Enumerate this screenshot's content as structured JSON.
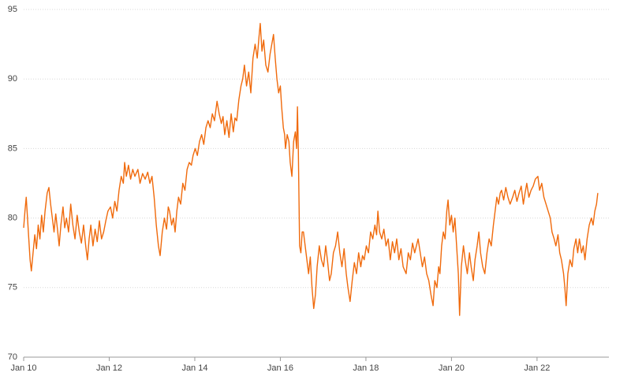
{
  "chart_data": {
    "type": "line",
    "color": "#f06a0c",
    "xlim": [
      2010,
      2023.68
    ],
    "ylim": [
      70,
      95
    ],
    "yticks": [
      70,
      75,
      80,
      85,
      90,
      95
    ],
    "grid": true,
    "xticks": [
      {
        "value": 2010,
        "label": "Jan 10"
      },
      {
        "value": 2012,
        "label": "Jan 12"
      },
      {
        "value": 2014,
        "label": "Jan 14"
      },
      {
        "value": 2016,
        "label": "Jan 16"
      },
      {
        "value": 2018,
        "label": "Jan 18"
      },
      {
        "value": 2020,
        "label": "Jan 20"
      },
      {
        "value": 2022,
        "label": "Jan 22"
      }
    ],
    "x": [
      2010.0,
      2010.03,
      2010.06,
      2010.09,
      2010.12,
      2010.15,
      2010.18,
      2010.22,
      2010.26,
      2010.3,
      2010.34,
      2010.38,
      2010.42,
      2010.46,
      2010.5,
      2010.55,
      2010.59,
      2010.63,
      2010.67,
      2010.71,
      2010.75,
      2010.79,
      2010.83,
      2010.87,
      2010.92,
      2010.96,
      2011.0,
      2011.05,
      2011.1,
      2011.15,
      2011.2,
      2011.25,
      2011.3,
      2011.35,
      2011.4,
      2011.45,
      2011.49,
      2011.53,
      2011.57,
      2011.62,
      2011.67,
      2011.72,
      2011.77,
      2011.82,
      2011.87,
      2011.92,
      2011.97,
      2012.03,
      2012.08,
      2012.13,
      2012.18,
      2012.23,
      2012.28,
      2012.33,
      2012.36,
      2012.4,
      2012.45,
      2012.5,
      2012.55,
      2012.6,
      2012.67,
      2012.72,
      2012.78,
      2012.84,
      2012.9,
      2012.95,
      2013.0,
      2013.05,
      2013.1,
      2013.15,
      2013.19,
      2013.24,
      2013.29,
      2013.34,
      2013.38,
      2013.41,
      2013.46,
      2013.5,
      2013.54,
      2013.58,
      2013.62,
      2013.67,
      2013.72,
      2013.77,
      2013.82,
      2013.87,
      2013.92,
      2013.96,
      2014.01,
      2014.06,
      2014.11,
      2014.16,
      2014.21,
      2014.26,
      2014.31,
      2014.36,
      2014.41,
      2014.46,
      2014.52,
      2014.57,
      2014.62,
      2014.66,
      2014.7,
      2014.75,
      2014.8,
      2014.85,
      2014.9,
      2014.94,
      2014.98,
      2015.03,
      2015.08,
      2015.12,
      2015.16,
      2015.21,
      2015.26,
      2015.31,
      2015.36,
      2015.41,
      2015.46,
      2015.5,
      2015.53,
      2015.57,
      2015.61,
      2015.66,
      2015.71,
      2015.76,
      2015.8,
      2015.84,
      2015.88,
      2015.92,
      2015.96,
      2016.0,
      2016.03,
      2016.07,
      2016.1,
      2016.12,
      2016.16,
      2016.2,
      2016.23,
      2016.27,
      2016.31,
      2016.35,
      2016.38,
      2016.4,
      2016.42,
      2016.45,
      2016.48,
      2016.51,
      2016.54,
      2016.58,
      2016.62,
      2016.66,
      2016.7,
      2016.74,
      2016.78,
      2016.82,
      2016.86,
      2016.91,
      2016.96,
      2017.01,
      2017.06,
      2017.1,
      2017.15,
      2017.19,
      2017.24,
      2017.29,
      2017.34,
      2017.39,
      2017.44,
      2017.49,
      2017.54,
      2017.58,
      2017.63,
      2017.68,
      2017.73,
      2017.78,
      2017.83,
      2017.88,
      2017.92,
      2017.96,
      2018.01,
      2018.06,
      2018.11,
      2018.16,
      2018.21,
      2018.25,
      2018.28,
      2018.32,
      2018.37,
      2018.42,
      2018.47,
      2018.52,
      2018.57,
      2018.62,
      2018.67,
      2018.72,
      2018.77,
      2018.82,
      2018.87,
      2018.94,
      2018.99,
      2019.04,
      2019.09,
      2019.14,
      2019.18,
      2019.22,
      2019.27,
      2019.32,
      2019.37,
      2019.42,
      2019.47,
      2019.52,
      2019.57,
      2019.61,
      2019.66,
      2019.7,
      2019.73,
      2019.77,
      2019.81,
      2019.85,
      2019.89,
      2019.92,
      2019.96,
      2020.0,
      2020.04,
      2020.08,
      2020.12,
      2020.16,
      2020.19,
      2020.23,
      2020.28,
      2020.32,
      2020.37,
      2020.42,
      2020.46,
      2020.51,
      2020.55,
      2020.6,
      2020.64,
      2020.68,
      2020.73,
      2020.78,
      2020.83,
      2020.88,
      2020.93,
      2020.98,
      2021.02,
      2021.06,
      2021.1,
      2021.14,
      2021.17,
      2021.22,
      2021.27,
      2021.32,
      2021.37,
      2021.43,
      2021.48,
      2021.53,
      2021.58,
      2021.63,
      2021.68,
      2021.72,
      2021.76,
      2021.81,
      2021.86,
      2021.91,
      2021.96,
      2022.02,
      2022.06,
      2022.11,
      2022.16,
      2022.21,
      2022.26,
      2022.31,
      2022.35,
      2022.4,
      2022.44,
      2022.49,
      2022.53,
      2022.57,
      2022.62,
      2022.65,
      2022.68,
      2022.72,
      2022.77,
      2022.82,
      2022.86,
      2022.91,
      2022.95,
      2022.99,
      2023.04,
      2023.08,
      2023.12,
      2023.17,
      2023.22,
      2023.27,
      2023.31,
      2023.35,
      2023.39,
      2023.42
    ],
    "values": [
      79.3,
      80.5,
      81.5,
      80.0,
      78.5,
      77.0,
      76.2,
      77.5,
      78.8,
      77.8,
      79.5,
      78.5,
      80.2,
      79.0,
      80.5,
      81.8,
      82.2,
      81.0,
      80.0,
      79.0,
      80.3,
      79.2,
      78.0,
      79.5,
      80.8,
      79.3,
      80.0,
      79.0,
      81.0,
      79.5,
      78.5,
      80.2,
      79.0,
      78.2,
      79.5,
      78.0,
      77.0,
      78.5,
      79.5,
      78.0,
      79.2,
      78.3,
      79.8,
      78.5,
      79.0,
      79.8,
      80.5,
      80.8,
      80.0,
      81.2,
      80.5,
      82.0,
      83.0,
      82.5,
      84.0,
      83.0,
      83.8,
      82.8,
      83.5,
      83.0,
      83.5,
      82.5,
      83.2,
      82.8,
      83.3,
      82.5,
      83.0,
      81.5,
      79.5,
      78.0,
      77.3,
      79.0,
      80.0,
      79.2,
      80.8,
      80.5,
      79.5,
      80.0,
      79.0,
      80.5,
      81.5,
      81.0,
      82.5,
      82.0,
      83.5,
      84.0,
      83.8,
      84.5,
      85.0,
      84.5,
      85.5,
      86.0,
      85.3,
      86.5,
      87.0,
      86.5,
      87.5,
      87.0,
      88.4,
      87.5,
      86.8,
      87.3,
      86.0,
      87.0,
      85.8,
      87.5,
      86.2,
      87.2,
      87.0,
      88.5,
      89.5,
      90.0,
      91.0,
      89.5,
      90.5,
      89.0,
      91.5,
      92.5,
      91.5,
      93.0,
      94.0,
      92.0,
      92.8,
      91.0,
      90.5,
      91.8,
      92.5,
      93.2,
      91.5,
      90.0,
      89.0,
      89.5,
      88.0,
      86.5,
      86.0,
      85.0,
      86.0,
      85.5,
      84.0,
      83.0,
      85.5,
      86.2,
      85.0,
      88.0,
      85.0,
      78.0,
      77.5,
      79.0,
      79.0,
      78.0,
      77.0,
      76.0,
      77.2,
      75.0,
      73.5,
      74.5,
      76.5,
      78.0,
      77.0,
      76.5,
      78.0,
      77.0,
      75.5,
      76.0,
      77.5,
      78.0,
      79.0,
      77.5,
      76.5,
      77.8,
      76.0,
      75.0,
      74.0,
      75.5,
      76.8,
      76.0,
      77.5,
      76.5,
      77.3,
      77.0,
      78.0,
      77.5,
      79.0,
      78.5,
      79.5,
      78.8,
      80.5,
      79.0,
      78.5,
      79.2,
      78.0,
      78.5,
      77.0,
      78.3,
      77.5,
      78.5,
      77.0,
      77.8,
      76.5,
      76.0,
      77.5,
      77.0,
      78.2,
      77.5,
      78.0,
      78.5,
      77.5,
      76.5,
      77.2,
      76.0,
      75.5,
      74.5,
      73.7,
      75.5,
      75.0,
      76.5,
      76.0,
      78.0,
      79.0,
      78.5,
      80.5,
      81.3,
      79.5,
      80.2,
      79.0,
      80.0,
      78.0,
      76.0,
      73.0,
      76.5,
      78.0,
      77.0,
      76.0,
      77.5,
      76.5,
      75.5,
      77.0,
      78.0,
      79.0,
      77.5,
      76.5,
      76.0,
      77.5,
      78.5,
      78.0,
      79.5,
      80.5,
      81.5,
      81.0,
      81.8,
      82.0,
      81.3,
      82.2,
      81.5,
      81.0,
      81.5,
      82.0,
      81.2,
      81.8,
      82.3,
      81.0,
      81.8,
      82.5,
      81.5,
      82.0,
      82.3,
      82.8,
      83.0,
      82.0,
      82.5,
      81.5,
      81.0,
      80.5,
      80.0,
      79.0,
      78.5,
      78.0,
      78.8,
      77.5,
      77.0,
      76.0,
      75.0,
      73.7,
      76.0,
      77.0,
      76.5,
      77.8,
      78.5,
      77.5,
      78.5,
      77.5,
      78.0,
      77.0,
      78.5,
      79.5,
      80.0,
      79.5,
      80.5,
      81.0,
      81.8
    ]
  }
}
